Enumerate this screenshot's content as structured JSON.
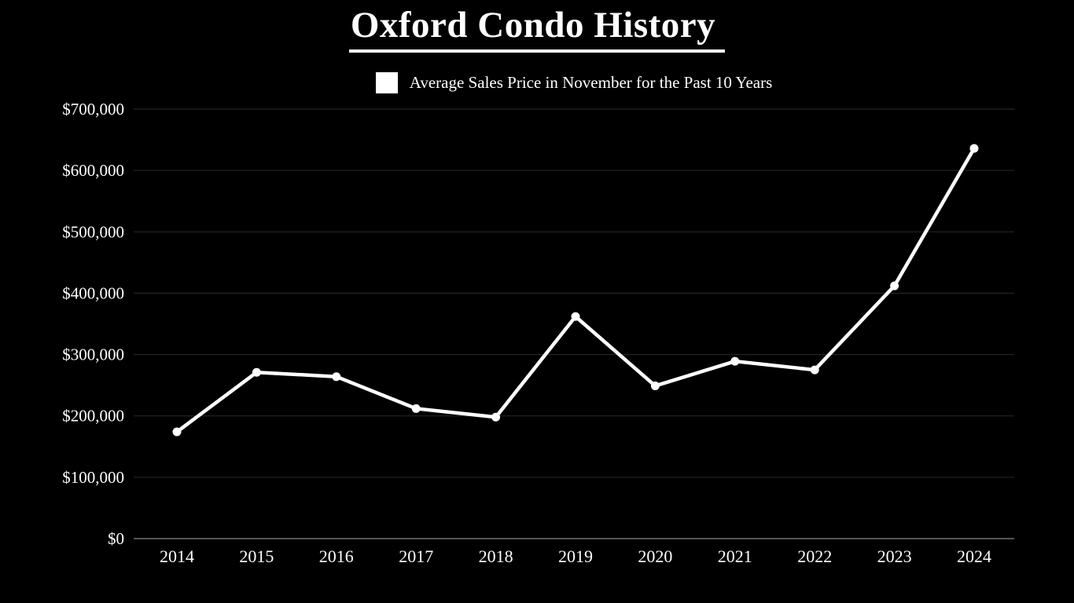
{
  "page": {
    "background_color": "#000000",
    "text_color": "#ffffff"
  },
  "title": {
    "text": "Oxford Condo History"
  },
  "legend": {
    "swatch_color": "#ffffff",
    "label": "Average Sales Price in November for the Past 10 Years"
  },
  "chart_data": {
    "type": "line",
    "title": "Oxford Condo History",
    "legend_entries": [
      "Average Sales Price in November for the Past 10 Years"
    ],
    "legend_position": "top-center",
    "categories": [
      "2014",
      "2015",
      "2016",
      "2017",
      "2018",
      "2019",
      "2020",
      "2021",
      "2022",
      "2023",
      "2024"
    ],
    "series": [
      {
        "name": "Average Sales Price in November",
        "values": [
          174000,
          271000,
          264000,
          212000,
          198000,
          362000,
          249000,
          289000,
          275000,
          412000,
          636000
        ]
      }
    ],
    "xlabel": "",
    "ylabel": "",
    "ylim": [
      0,
      700000
    ],
    "ytick_step": 100000,
    "ytick_labels": [
      "$0",
      "$100,000",
      "$200,000",
      "$300,000",
      "$400,000",
      "$500,000",
      "$600,000",
      "$700,000"
    ],
    "grid": true,
    "marker": "circle",
    "line_color": "#ffffff",
    "marker_color": "#ffffff",
    "gridline_color": "#2b2b2b",
    "axis_line_color": "#555555",
    "label_color": "#ffffff"
  }
}
